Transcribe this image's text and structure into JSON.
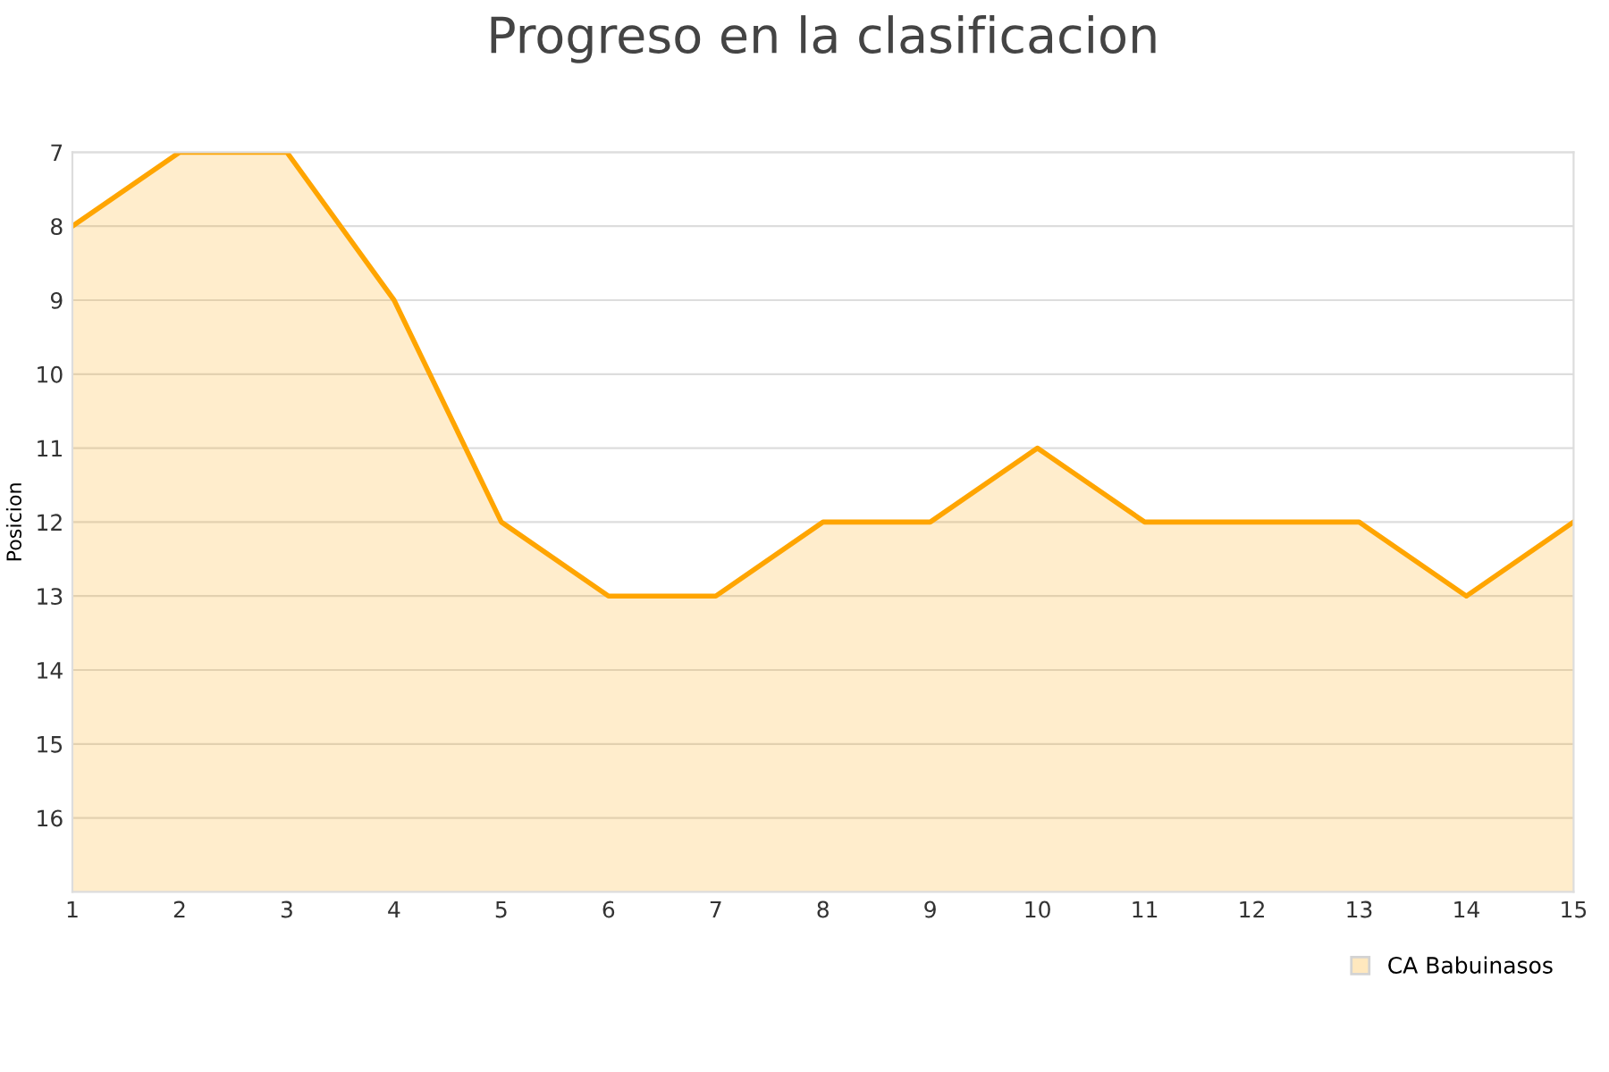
{
  "chart_data": {
    "type": "area",
    "title": "Progreso en la clasificacion",
    "ylabel": "Posicion",
    "x": [
      1,
      2,
      3,
      4,
      5,
      6,
      7,
      8,
      9,
      10,
      11,
      12,
      13,
      14,
      15
    ],
    "series": [
      {
        "name": "CA Babuinasos",
        "color": "#ffa500",
        "values": [
          8,
          7,
          7,
          9,
          12,
          13,
          13,
          12,
          12,
          11,
          12,
          12,
          12,
          13,
          12
        ]
      }
    ],
    "xlim": [
      1,
      15
    ],
    "xticks": [
      1,
      2,
      3,
      4,
      5,
      6,
      7,
      8,
      9,
      10,
      11,
      12,
      13,
      14,
      15
    ],
    "ylim": [
      17,
      7
    ],
    "yticks": [
      7,
      8,
      9,
      10,
      11,
      12,
      13,
      14,
      15,
      16
    ],
    "grid": "y",
    "legend": "bottom right"
  }
}
